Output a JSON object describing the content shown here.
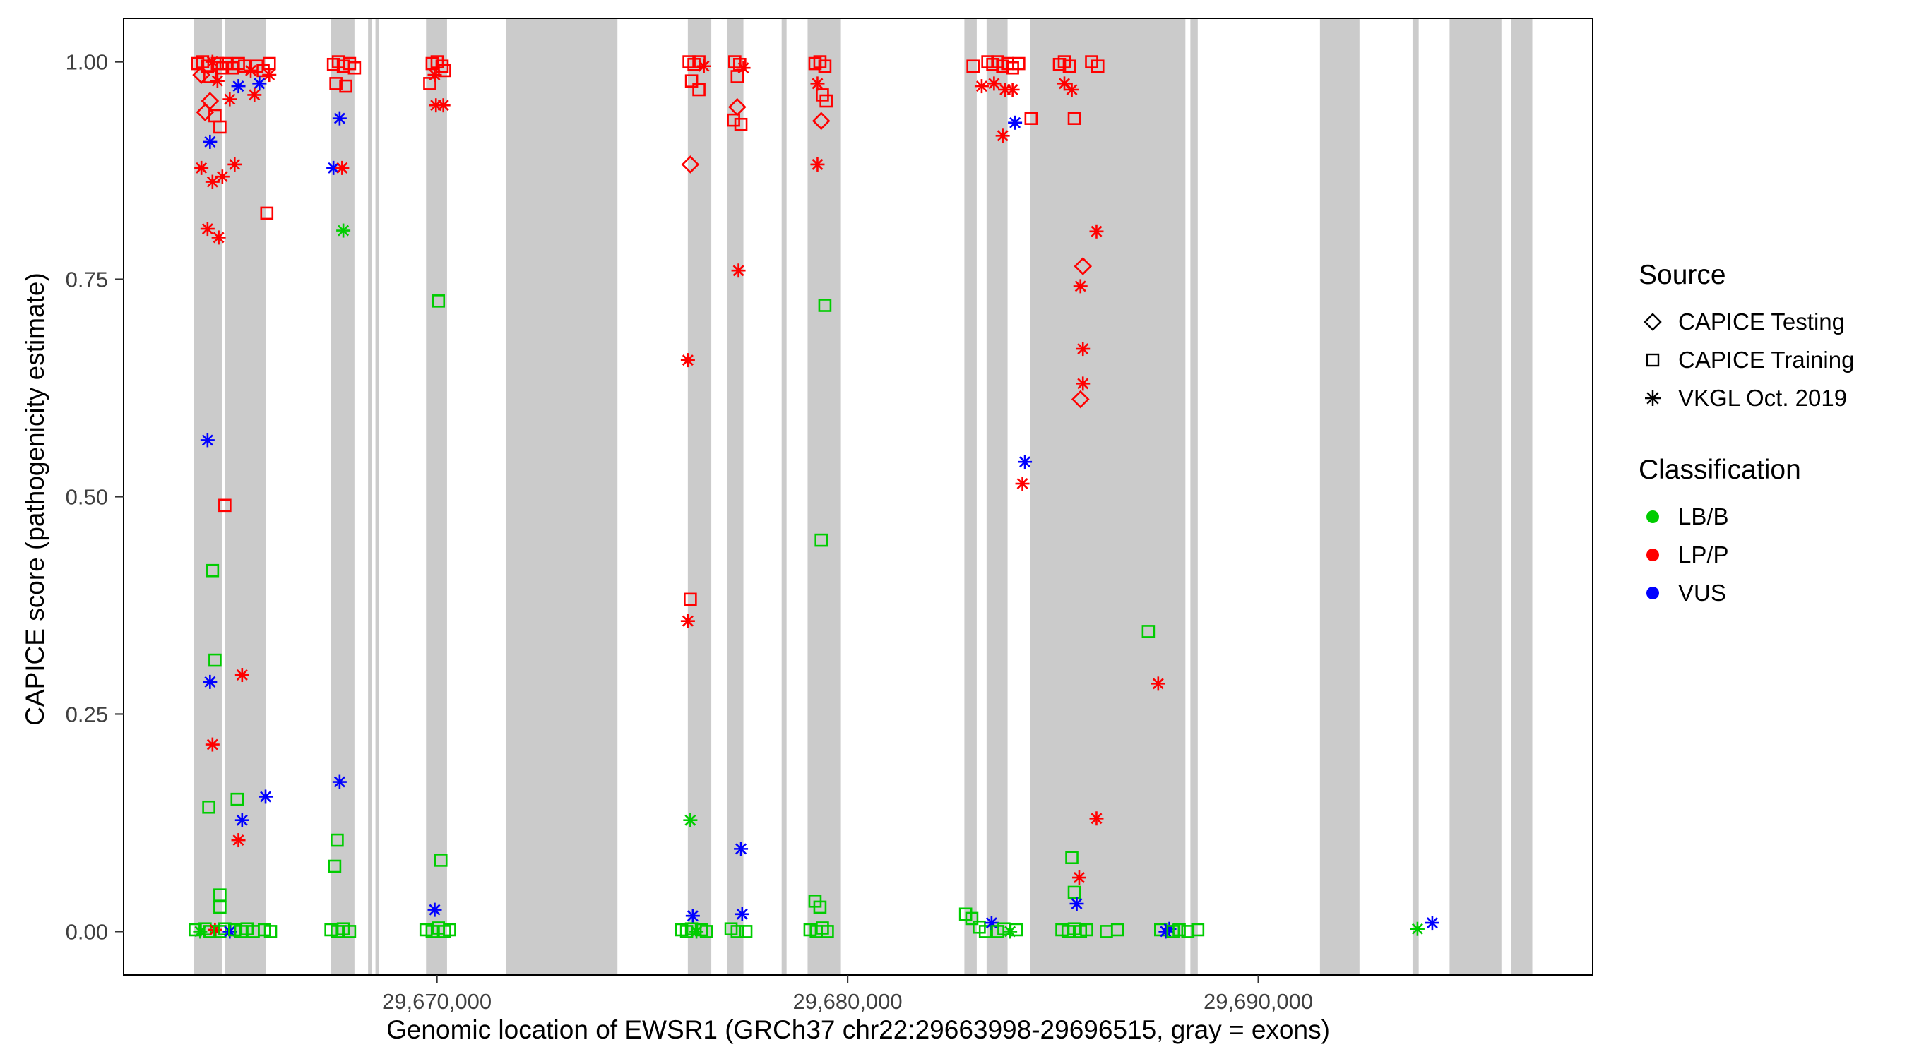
{
  "figure": {
    "x_axis_label": "Genomic location of EWSR1 (GRCh37 chr22:29663998-29696515, gray = exons)",
    "y_axis_label": "CAPICE score (pathogenicity estimate)"
  },
  "legend": {
    "source": {
      "title": "Source",
      "items": [
        {
          "label": "CAPICE Testing",
          "shape": "diamond"
        },
        {
          "label": "CAPICE Training",
          "shape": "square"
        },
        {
          "label": "VKGL Oct. 2019",
          "shape": "asterisk"
        }
      ]
    },
    "classification": {
      "title": "Classification",
      "items": [
        {
          "label": "LB/B",
          "color": "#00CC00"
        },
        {
          "label": "LP/P",
          "color": "#FF0000"
        },
        {
          "label": "VUS",
          "color": "#0000FF"
        }
      ]
    }
  },
  "chart_data": {
    "type": "scatter",
    "title": "",
    "xlabel": "Genomic location of EWSR1 (GRCh37 chr22:29663998-29696515, gray = exons)",
    "ylabel": "CAPICE score (pathogenicity estimate)",
    "x_range": [
      29662372,
      29698141
    ],
    "y_range": [
      -0.05,
      1.05
    ],
    "x_ticks": [
      {
        "value": 29670000,
        "label": "29,670,000"
      },
      {
        "value": 29680000,
        "label": "29,680,000"
      },
      {
        "value": 29690000,
        "label": "29,690,000"
      }
    ],
    "y_ticks": [
      {
        "value": 0.0,
        "label": "0.00"
      },
      {
        "value": 0.25,
        "label": "0.25"
      },
      {
        "value": 0.5,
        "label": "0.50"
      },
      {
        "value": 0.75,
        "label": "0.75"
      },
      {
        "value": 1.0,
        "label": "1.00"
      }
    ],
    "exon_color": "#CBCBCB",
    "colors": {
      "g": "#00CC00",
      "r": "#FF0000",
      "b": "#0000FF"
    },
    "shape_key": {
      "d": "CAPICE Testing",
      "s": "CAPICE Training",
      "a": "VKGL Oct. 2019"
    },
    "class_key": {
      "g": "LB/B",
      "r": "LP/P",
      "b": "VUS"
    },
    "exons": [
      [
        29664086,
        29664777
      ],
      [
        29664837,
        29665829
      ],
      [
        29667422,
        29667993
      ],
      [
        29668324,
        29668414
      ],
      [
        29668504,
        29668594
      ],
      [
        29669736,
        29670247
      ],
      [
        29671690,
        29674396
      ],
      [
        29676110,
        29676681
      ],
      [
        29677072,
        29677463
      ],
      [
        29678394,
        29678514
      ],
      [
        29679026,
        29679837
      ],
      [
        29682843,
        29683144
      ],
      [
        29683384,
        29683895
      ],
      [
        29684437,
        29688224
      ],
      [
        29688345,
        29688525
      ],
      [
        29691501,
        29692463
      ],
      [
        29693755,
        29693905
      ],
      [
        29694657,
        29695919
      ],
      [
        29696160,
        29696671
      ]
    ],
    "point_format": [
      "x_genomic_position",
      "y_capice_score",
      "shape(d|s|a)",
      "class(g|r|b)"
    ],
    "points": [
      [
        29664176,
        0.998,
        "s",
        "r"
      ],
      [
        29664296,
        1.0,
        "s",
        "r"
      ],
      [
        29664416,
        0.995,
        "s",
        "r"
      ],
      [
        29664536,
        1.0,
        "a",
        "r"
      ],
      [
        29664656,
        0.998,
        "s",
        "r"
      ],
      [
        29664777,
        0.993,
        "s",
        "r"
      ],
      [
        29664266,
        0.985,
        "d",
        "r"
      ],
      [
        29664476,
        0.983,
        "s",
        "r"
      ],
      [
        29664657,
        0.978,
        "a",
        "r"
      ],
      [
        29664867,
        0.998,
        "s",
        "r"
      ],
      [
        29665017,
        0.993,
        "s",
        "r"
      ],
      [
        29665167,
        0.998,
        "s",
        "r"
      ],
      [
        29665318,
        0.995,
        "s",
        "r"
      ],
      [
        29665468,
        0.99,
        "a",
        "r"
      ],
      [
        29665618,
        0.995,
        "s",
        "r"
      ],
      [
        29665769,
        0.99,
        "s",
        "r"
      ],
      [
        29665919,
        0.985,
        "a",
        "r"
      ],
      [
        29665919,
        0.998,
        "s",
        "r"
      ],
      [
        29665167,
        0.972,
        "a",
        "b"
      ],
      [
        29665679,
        0.975,
        "a",
        "b"
      ],
      [
        29665558,
        0.962,
        "a",
        "r"
      ],
      [
        29664957,
        0.957,
        "a",
        "r"
      ],
      [
        29664476,
        0.955,
        "d",
        "r"
      ],
      [
        29664356,
        0.942,
        "d",
        "r"
      ],
      [
        29664597,
        0.938,
        "s",
        "r"
      ],
      [
        29664717,
        0.925,
        "s",
        "r"
      ],
      [
        29664476,
        0.908,
        "a",
        "b"
      ],
      [
        29665077,
        0.882,
        "a",
        "r"
      ],
      [
        29664266,
        0.878,
        "a",
        "r"
      ],
      [
        29664536,
        0.862,
        "a",
        "r"
      ],
      [
        29664777,
        0.868,
        "a",
        "r"
      ],
      [
        29664416,
        0.808,
        "a",
        "r"
      ],
      [
        29664687,
        0.798,
        "a",
        "r"
      ],
      [
        29665859,
        0.826,
        "s",
        "r"
      ],
      [
        29664416,
        0.565,
        "a",
        "b"
      ],
      [
        29664837,
        0.49,
        "s",
        "r"
      ],
      [
        29664536,
        0.415,
        "s",
        "g"
      ],
      [
        29664597,
        0.312,
        "s",
        "g"
      ],
      [
        29664476,
        0.287,
        "a",
        "b"
      ],
      [
        29665258,
        0.295,
        "a",
        "r"
      ],
      [
        29664536,
        0.215,
        "a",
        "r"
      ],
      [
        29664446,
        0.143,
        "s",
        "g"
      ],
      [
        29665137,
        0.152,
        "s",
        "g"
      ],
      [
        29665258,
        0.128,
        "a",
        "b"
      ],
      [
        29665167,
        0.105,
        "a",
        "r"
      ],
      [
        29665829,
        0.155,
        "a",
        "b"
      ],
      [
        29664717,
        0.042,
        "s",
        "g"
      ],
      [
        29664717,
        0.028,
        "s",
        "g"
      ],
      [
        29664116,
        0.002,
        "s",
        "g"
      ],
      [
        29664236,
        0.0,
        "a",
        "g"
      ],
      [
        29664356,
        0.003,
        "s",
        "g"
      ],
      [
        29664476,
        0.0,
        "s",
        "g"
      ],
      [
        29664597,
        0.002,
        "a",
        "r"
      ],
      [
        29664717,
        0.0,
        "s",
        "g"
      ],
      [
        29664837,
        0.003,
        "s",
        "g"
      ],
      [
        29664957,
        0.0,
        "a",
        "b"
      ],
      [
        29665077,
        0.002,
        "s",
        "g"
      ],
      [
        29665228,
        0.0,
        "s",
        "g"
      ],
      [
        29665378,
        0.003,
        "s",
        "g"
      ],
      [
        29665528,
        0.0,
        "s",
        "g"
      ],
      [
        29665799,
        0.002,
        "s",
        "g"
      ],
      [
        29665949,
        0.0,
        "s",
        "g"
      ],
      [
        29667482,
        0.997,
        "s",
        "r"
      ],
      [
        29667602,
        1.0,
        "s",
        "r"
      ],
      [
        29667722,
        0.995,
        "s",
        "r"
      ],
      [
        29667873,
        0.998,
        "s",
        "r"
      ],
      [
        29667993,
        0.993,
        "s",
        "r"
      ],
      [
        29667542,
        0.975,
        "s",
        "r"
      ],
      [
        29667782,
        0.972,
        "s",
        "r"
      ],
      [
        29667632,
        0.935,
        "a",
        "b"
      ],
      [
        29667482,
        0.878,
        "a",
        "b"
      ],
      [
        29667692,
        0.878,
        "a",
        "r"
      ],
      [
        29667722,
        0.806,
        "a",
        "g"
      ],
      [
        29667572,
        0.105,
        "s",
        "g"
      ],
      [
        29667512,
        0.075,
        "s",
        "g"
      ],
      [
        29667632,
        0.172,
        "a",
        "b"
      ],
      [
        29667422,
        0.002,
        "s",
        "g"
      ],
      [
        29667572,
        0.0,
        "s",
        "g"
      ],
      [
        29667722,
        0.003,
        "s",
        "g"
      ],
      [
        29667873,
        0.0,
        "s",
        "g"
      ],
      [
        29669886,
        0.998,
        "s",
        "r"
      ],
      [
        29670007,
        1.0,
        "s",
        "r"
      ],
      [
        29670127,
        0.995,
        "s",
        "r"
      ],
      [
        29669947,
        0.985,
        "a",
        "r"
      ],
      [
        29670187,
        0.99,
        "s",
        "r"
      ],
      [
        29669826,
        0.975,
        "s",
        "r"
      ],
      [
        29669977,
        0.95,
        "a",
        "r"
      ],
      [
        29670157,
        0.95,
        "a",
        "r"
      ],
      [
        29670037,
        0.725,
        "s",
        "g"
      ],
      [
        29670097,
        0.082,
        "s",
        "g"
      ],
      [
        29669947,
        0.025,
        "a",
        "b"
      ],
      [
        29669736,
        0.002,
        "s",
        "g"
      ],
      [
        29669886,
        0.0,
        "s",
        "g"
      ],
      [
        29670037,
        0.004,
        "s",
        "g"
      ],
      [
        29670187,
        0.0,
        "s",
        "g"
      ],
      [
        29670307,
        0.002,
        "s",
        "g"
      ],
      [
        29676140,
        1.0,
        "s",
        "r"
      ],
      [
        29676260,
        0.997,
        "s",
        "r"
      ],
      [
        29676380,
        1.0,
        "s",
        "r"
      ],
      [
        29676501,
        0.995,
        "a",
        "r"
      ],
      [
        29676200,
        0.978,
        "s",
        "r"
      ],
      [
        29676380,
        0.968,
        "s",
        "r"
      ],
      [
        29676170,
        0.882,
        "d",
        "r"
      ],
      [
        29676110,
        0.657,
        "a",
        "r"
      ],
      [
        29676170,
        0.382,
        "s",
        "r"
      ],
      [
        29676110,
        0.357,
        "a",
        "r"
      ],
      [
        29676170,
        0.128,
        "a",
        "g"
      ],
      [
        29676230,
        0.018,
        "a",
        "b"
      ],
      [
        29675960,
        0.002,
        "s",
        "g"
      ],
      [
        29676080,
        0.0,
        "s",
        "g"
      ],
      [
        29676200,
        0.003,
        "s",
        "g"
      ],
      [
        29676320,
        0.0,
        "a",
        "g"
      ],
      [
        29676440,
        0.002,
        "s",
        "g"
      ],
      [
        29676561,
        0.0,
        "s",
        "g"
      ],
      [
        29677253,
        1.0,
        "s",
        "r"
      ],
      [
        29677373,
        0.997,
        "s",
        "r"
      ],
      [
        29677463,
        0.993,
        "a",
        "r"
      ],
      [
        29677313,
        0.983,
        "s",
        "r"
      ],
      [
        29677313,
        0.948,
        "d",
        "r"
      ],
      [
        29677223,
        0.933,
        "s",
        "r"
      ],
      [
        29677403,
        0.928,
        "s",
        "r"
      ],
      [
        29677343,
        0.76,
        "a",
        "r"
      ],
      [
        29677403,
        0.095,
        "a",
        "b"
      ],
      [
        29677162,
        0.003,
        "s",
        "g"
      ],
      [
        29677313,
        0.0,
        "s",
        "g"
      ],
      [
        29677433,
        0.02,
        "a",
        "b"
      ],
      [
        29677523,
        0.0,
        "s",
        "g"
      ],
      [
        29679207,
        0.998,
        "s",
        "r"
      ],
      [
        29679327,
        1.0,
        "s",
        "r"
      ],
      [
        29679447,
        0.995,
        "s",
        "r"
      ],
      [
        29679267,
        0.975,
        "a",
        "r"
      ],
      [
        29679387,
        0.962,
        "s",
        "r"
      ],
      [
        29679477,
        0.955,
        "s",
        "r"
      ],
      [
        29679357,
        0.932,
        "d",
        "r"
      ],
      [
        29679267,
        0.882,
        "a",
        "r"
      ],
      [
        29679447,
        0.72,
        "s",
        "g"
      ],
      [
        29679357,
        0.45,
        "s",
        "g"
      ],
      [
        29679207,
        0.035,
        "s",
        "g"
      ],
      [
        29679327,
        0.028,
        "s",
        "g"
      ],
      [
        29679086,
        0.002,
        "s",
        "g"
      ],
      [
        29679237,
        0.0,
        "s",
        "g"
      ],
      [
        29679387,
        0.004,
        "s",
        "g"
      ],
      [
        29679507,
        0.0,
        "s",
        "g"
      ],
      [
        29683054,
        0.995,
        "s",
        "r"
      ],
      [
        29683415,
        1.0,
        "s",
        "r"
      ],
      [
        29683535,
        0.997,
        "s",
        "r"
      ],
      [
        29683655,
        1.0,
        "s",
        "r"
      ],
      [
        29683776,
        0.995,
        "s",
        "r"
      ],
      [
        29683896,
        0.998,
        "s",
        "r"
      ],
      [
        29684016,
        0.993,
        "s",
        "r"
      ],
      [
        29684166,
        0.998,
        "s",
        "r"
      ],
      [
        29683265,
        0.972,
        "a",
        "r"
      ],
      [
        29683565,
        0.975,
        "a",
        "r"
      ],
      [
        29683836,
        0.968,
        "a",
        "r"
      ],
      [
        29684016,
        0.968,
        "a",
        "r"
      ],
      [
        29684076,
        0.93,
        "a",
        "b"
      ],
      [
        29683776,
        0.915,
        "a",
        "r"
      ],
      [
        29684467,
        0.935,
        "s",
        "r"
      ],
      [
        29684316,
        0.54,
        "a",
        "b"
      ],
      [
        29684256,
        0.515,
        "a",
        "r"
      ],
      [
        29682873,
        0.02,
        "s",
        "g"
      ],
      [
        29683024,
        0.015,
        "s",
        "g"
      ],
      [
        29683204,
        0.005,
        "s",
        "g"
      ],
      [
        29683355,
        0.0,
        "s",
        "g"
      ],
      [
        29683505,
        0.01,
        "a",
        "b"
      ],
      [
        29683655,
        0.0,
        "s",
        "g"
      ],
      [
        29683806,
        0.003,
        "s",
        "g"
      ],
      [
        29683956,
        0.0,
        "a",
        "g"
      ],
      [
        29684106,
        0.002,
        "s",
        "g"
      ],
      [
        29685158,
        0.997,
        "s",
        "r"
      ],
      [
        29685278,
        1.0,
        "s",
        "r"
      ],
      [
        29685398,
        0.995,
        "s",
        "r"
      ],
      [
        29685278,
        0.975,
        "a",
        "r"
      ],
      [
        29685459,
        0.968,
        "a",
        "r"
      ],
      [
        29685940,
        1.0,
        "s",
        "r"
      ],
      [
        29686090,
        0.995,
        "s",
        "r"
      ],
      [
        29685519,
        0.935,
        "s",
        "r"
      ],
      [
        29686060,
        0.805,
        "a",
        "r"
      ],
      [
        29685729,
        0.765,
        "d",
        "r"
      ],
      [
        29685669,
        0.742,
        "a",
        "r"
      ],
      [
        29685729,
        0.67,
        "a",
        "r"
      ],
      [
        29685729,
        0.63,
        "a",
        "r"
      ],
      [
        29685669,
        0.612,
        "d",
        "r"
      ],
      [
        29686060,
        0.13,
        "a",
        "r"
      ],
      [
        29685639,
        0.062,
        "a",
        "r"
      ],
      [
        29685459,
        0.085,
        "s",
        "g"
      ],
      [
        29685519,
        0.045,
        "s",
        "g"
      ],
      [
        29685579,
        0.032,
        "a",
        "b"
      ],
      [
        29685218,
        0.002,
        "s",
        "g"
      ],
      [
        29685368,
        0.0,
        "s",
        "g"
      ],
      [
        29685519,
        0.003,
        "s",
        "g"
      ],
      [
        29685669,
        0.0,
        "s",
        "g"
      ],
      [
        29685820,
        0.002,
        "s",
        "g"
      ],
      [
        29686301,
        0.0,
        "s",
        "g"
      ],
      [
        29686571,
        0.002,
        "s",
        "g"
      ],
      [
        29687322,
        0.345,
        "s",
        "g"
      ],
      [
        29687562,
        0.285,
        "a",
        "r"
      ],
      [
        29687622,
        0.002,
        "s",
        "g"
      ],
      [
        29687743,
        0.0,
        "a",
        "b"
      ],
      [
        29687833,
        0.003,
        "a",
        "b"
      ],
      [
        29687923,
        0.0,
        "s",
        "g"
      ],
      [
        29688073,
        0.002,
        "s",
        "g"
      ],
      [
        29688284,
        0.0,
        "s",
        "g"
      ],
      [
        29688525,
        0.002,
        "s",
        "g"
      ],
      [
        29693875,
        0.003,
        "a",
        "g"
      ],
      [
        29694236,
        0.01,
        "a",
        "b"
      ]
    ]
  }
}
